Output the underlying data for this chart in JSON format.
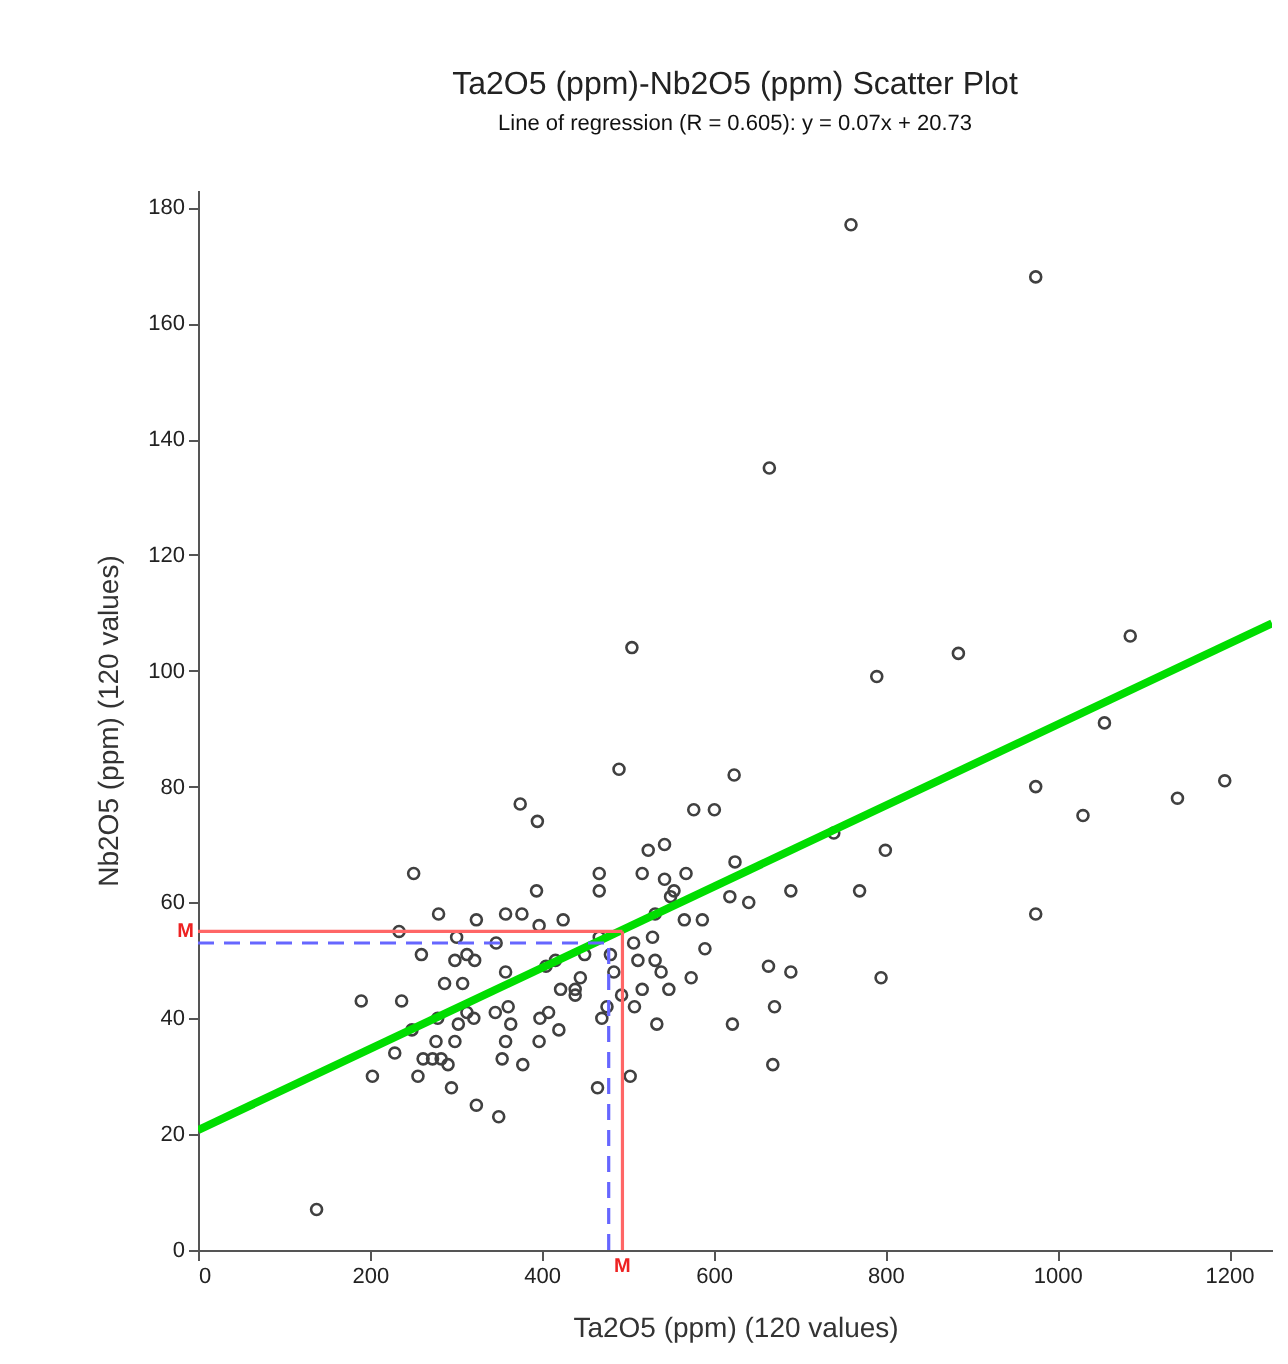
{
  "chart_data": {
    "type": "scatter",
    "title": "Ta2O5 (ppm)-Nb2O5 (ppm) Scatter Plot",
    "subtitle": "Line of regression (R = 0.605): y = 0.07x + 20.73",
    "xlabel": "Ta2O5 (ppm) (120 values)",
    "ylabel": "Nb2O5 (ppm) (120 values)",
    "xlim": [
      0,
      1250
    ],
    "ylim": [
      0,
      183
    ],
    "xticks": [
      0,
      200,
      400,
      600,
      800,
      1000,
      1200
    ],
    "yticks": [
      0,
      20,
      40,
      60,
      80,
      100,
      120,
      140,
      160,
      180
    ],
    "grid": false,
    "marker": "circle",
    "series": [
      {
        "color": "#404040",
        "x": [
          138,
          190,
          203,
          237,
          234,
          251,
          260,
          249,
          229,
          256,
          280,
          301,
          313,
          299,
          322,
          287,
          308,
          279,
          313,
          321,
          303,
          277,
          299,
          262,
          273,
          283,
          291,
          295,
          324,
          350,
          324,
          347,
          358,
          377,
          394,
          397,
          425,
          375,
          395,
          358,
          346,
          361,
          364,
          358,
          354,
          378,
          398,
          408,
          397,
          420,
          405,
          416,
          422,
          439,
          445,
          439,
          450,
          467,
          467,
          465,
          470,
          476,
          480,
          484,
          467,
          490,
          493,
          503,
          508,
          507,
          512,
          517,
          529,
          532,
          534,
          539,
          548,
          532,
          517,
          524,
          543,
          543,
          550,
          554,
          568,
          566,
          587,
          590,
          574,
          577,
          601,
          624,
          625,
          619,
          641,
          622,
          664,
          671,
          669,
          760,
          975,
          665,
          505,
          790,
          885,
          1085,
          1055,
          975,
          1030,
          1140,
          1195,
          740,
          800,
          690,
          770,
          975,
          690,
          795
        ],
        "values": [
          7,
          43,
          30,
          43,
          55,
          65,
          51,
          38,
          34,
          30,
          58,
          54,
          51,
          50,
          50,
          46,
          46,
          40,
          41,
          40,
          39,
          36,
          36,
          33,
          33,
          33,
          32,
          28,
          25,
          23,
          57,
          53,
          58,
          58,
          62,
          56,
          57,
          77,
          74,
          48,
          41,
          42,
          39,
          36,
          33,
          32,
          40,
          41,
          36,
          38,
          49,
          50,
          45,
          45,
          47,
          44,
          51,
          65,
          62,
          28,
          40,
          42,
          51,
          48,
          54,
          83,
          44,
          30,
          42,
          53,
          50,
          45,
          54,
          50,
          39,
          48,
          45,
          58,
          65,
          69,
          70,
          64,
          61,
          62,
          65,
          57,
          57,
          52,
          47,
          76,
          76,
          82,
          67,
          61,
          60,
          39,
          49,
          42,
          32,
          177,
          168,
          135,
          104,
          99,
          103,
          106,
          91,
          80,
          75,
          78,
          81,
          72,
          69,
          62,
          62,
          58,
          48,
          47
        ]
      },
      {
        "type": "line",
        "marker": "none",
        "color": "#00dd00",
        "x": [
          0,
          1250
        ],
        "values": [
          20.7,
          108.2
        ]
      }
    ],
    "ref_lines": [
      {
        "axis": "y",
        "value": 55,
        "label": "M",
        "color": "#ff6666"
      },
      {
        "axis": "x",
        "value": 494,
        "label": "M",
        "color": "#ff6666"
      },
      {
        "axis": "y",
        "value": 53,
        "label": null,
        "color": "#6666ff",
        "line_style": "dashed"
      },
      {
        "axis": "x",
        "value": 478,
        "label": null,
        "color": "#6666ff",
        "line_style": "dashed"
      }
    ]
  }
}
